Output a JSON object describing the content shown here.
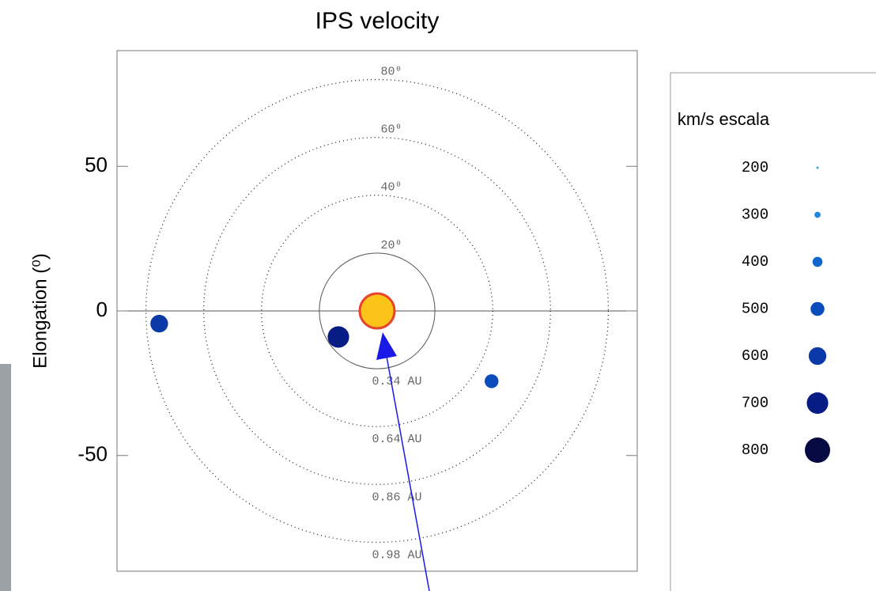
{
  "chart_data": {
    "type": "bubble",
    "title": "IPS velocity",
    "ylabel": "Elongation (⁰)",
    "xlim": [
      -90,
      90
    ],
    "ylim": [
      -90,
      90
    ],
    "yticks": [
      50,
      0,
      -50
    ],
    "x": [
      -75.4,
      -13.4,
      39.6
    ],
    "values": [
      -4.4,
      -9,
      -24.3
    ],
    "sizes": [
      600,
      700,
      500
    ],
    "circles": [
      {
        "radius": 20,
        "label": "20⁰",
        "au_label": "0.34 AU"
      },
      {
        "radius": 40,
        "label": "40⁰",
        "au_label": "0.64 AU"
      },
      {
        "radius": 60,
        "label": "60⁰",
        "au_label": "0.86 AU"
      },
      {
        "radius": 80,
        "label": "80⁰",
        "au_label": "0.98 AU"
      }
    ],
    "legend": {
      "title": "km/s escala",
      "values": [
        200,
        300,
        400,
        500,
        600,
        700,
        800
      ],
      "colors": [
        "#3aa0e6",
        "#1f86dc",
        "#1166cc",
        "#0b4cbc",
        "#0a3aa8",
        "#081c86",
        "#050b42"
      ]
    }
  }
}
